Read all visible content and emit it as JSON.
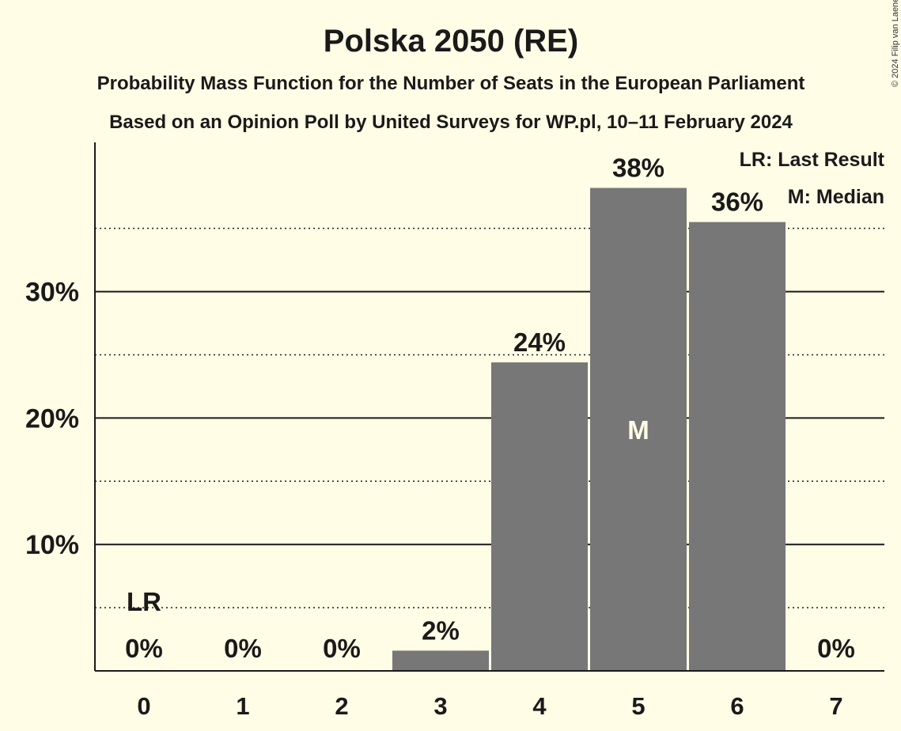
{
  "chart_data": {
    "type": "bar",
    "title": "Polska 2050 (RE)",
    "subtitle": "Probability Mass Function for the Number of Seats in the European Parliament",
    "subtitle2": "Based on an Opinion Poll by United Surveys for WP.pl, 10–11 February 2024",
    "copyright": "© 2024 Filip van Laenen",
    "categories": [
      "0",
      "1",
      "2",
      "3",
      "4",
      "5",
      "6",
      "7"
    ],
    "values": [
      0,
      0,
      0,
      1.6,
      24.4,
      38.2,
      35.5,
      0
    ],
    "value_labels": [
      "0%",
      "0%",
      "0%",
      "2%",
      "24%",
      "38%",
      "36%",
      "0%"
    ],
    "median_index": 5,
    "median_marker": "M",
    "last_result_index": 0,
    "last_result_marker": "LR",
    "legend": [
      "LR: Last Result",
      "M: Median"
    ],
    "yticks": [
      10,
      20,
      30
    ],
    "ytick_labels": [
      "10%",
      "20%",
      "30%"
    ],
    "minor_gridlines": [
      5,
      15,
      25,
      35
    ],
    "ylim": [
      0,
      41.8
    ],
    "bar_color": "#777777",
    "background_color": "#FFFDE6",
    "grid": true
  }
}
